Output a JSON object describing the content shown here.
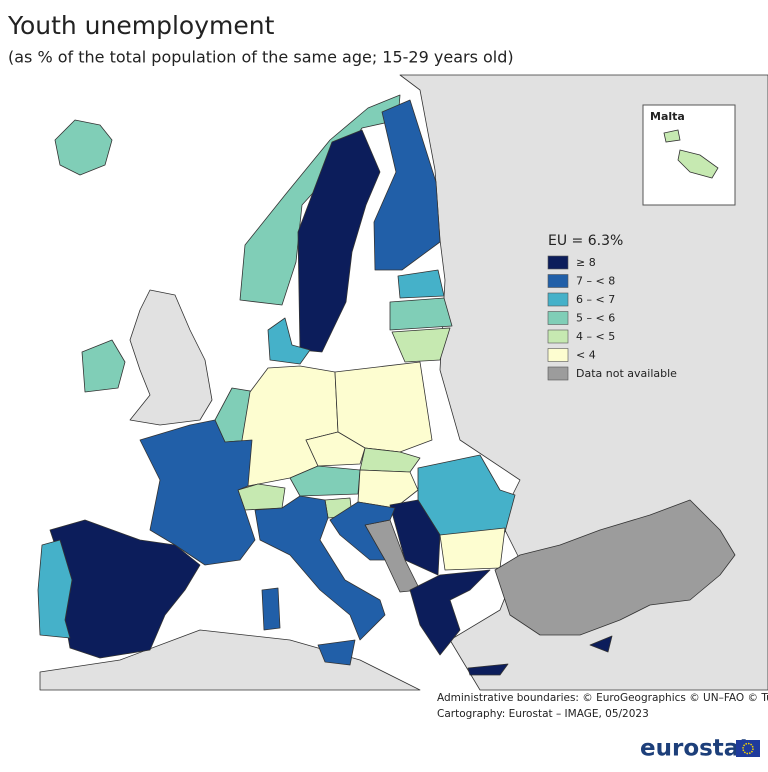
{
  "title": "Youth unemployment",
  "subtitle": "(as % of the total population of the same age; 15-29 years old)",
  "inset_label": "Malta",
  "legend": {
    "title": "EU = 6.3%",
    "items": [
      {
        "label": "≥ 8",
        "color": "#0c1d5b"
      },
      {
        "label": "7 – < 8",
        "color": "#215fa8"
      },
      {
        "label": "6 – < 7",
        "color": "#45b1c9"
      },
      {
        "label": "5 – < 6",
        "color": "#80ceb7"
      },
      {
        "label": "4 – < 5",
        "color": "#c6e9b1"
      },
      {
        "label": "< 4",
        "color": "#fdfdd0"
      },
      {
        "label": "Data not available",
        "color": "#9c9c9c"
      }
    ]
  },
  "credits": [
    "Administrative boundaries: © EuroGeographics © UN–FAO © Turkstat",
    "Cartography: Eurostat – IMAGE, 05/2023"
  ],
  "logo": "eurostat"
}
